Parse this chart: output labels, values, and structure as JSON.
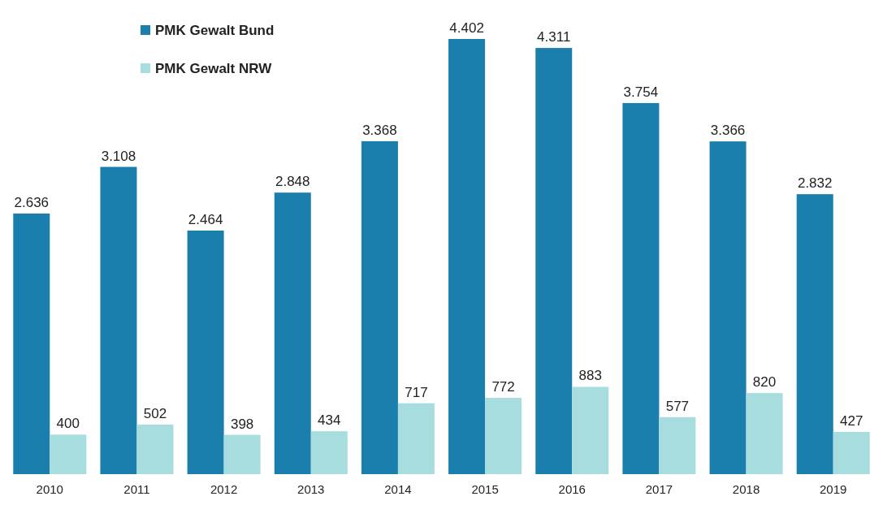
{
  "chart_data": {
    "type": "bar",
    "categories": [
      "2010",
      "2011",
      "2012",
      "2013",
      "2014",
      "2015",
      "2016",
      "2017",
      "2018",
      "2019"
    ],
    "series": [
      {
        "name": "PMK Gewalt Bund",
        "color": "#1a7fad",
        "values": [
          2636,
          3108,
          2464,
          2848,
          3368,
          4402,
          4311,
          3754,
          3366,
          2832
        ],
        "value_labels": [
          "2.636",
          "3.108",
          "2.464",
          "2.848",
          "3.368",
          "4.402",
          "4.311",
          "3.754",
          "3.366",
          "2.832"
        ]
      },
      {
        "name": "PMK Gewalt NRW",
        "color": "#a8dde0",
        "values": [
          400,
          502,
          398,
          434,
          717,
          772,
          883,
          577,
          820,
          427
        ],
        "value_labels": [
          "400",
          "502",
          "398",
          "434",
          "717",
          "772",
          "883",
          "577",
          "820",
          "427"
        ]
      }
    ],
    "legend": "top left",
    "grid": false
  }
}
